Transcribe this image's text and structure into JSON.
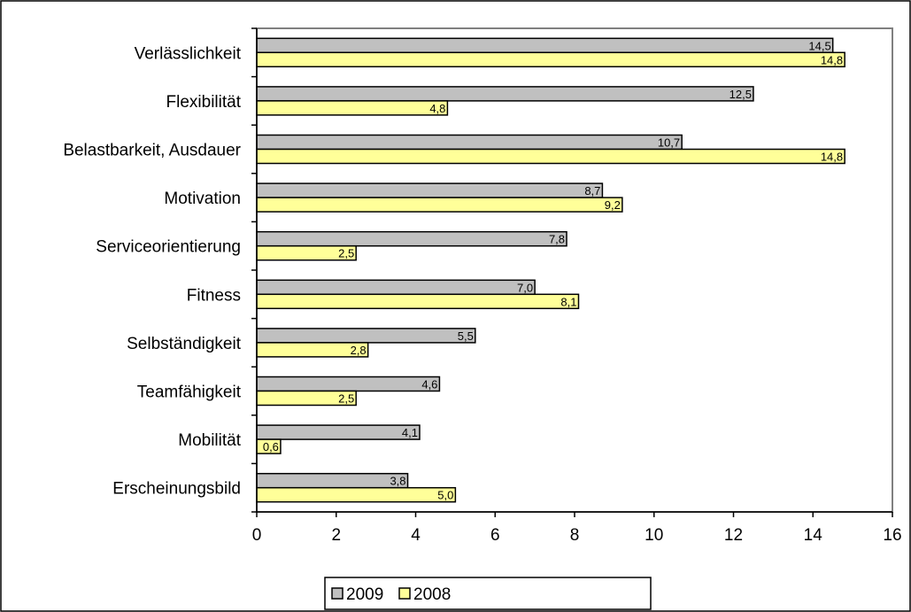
{
  "chart_data": {
    "type": "bar",
    "orientation": "horizontal",
    "categories": [
      "Verlässlichkeit",
      "Flexibilität",
      "Belastbarkeit, Ausdauer",
      "Motivation",
      "Serviceorientierung",
      "Fitness",
      "Selbständigkeit",
      "Teamfähigkeit",
      "Mobilität",
      "Erscheinungsbild"
    ],
    "series": [
      {
        "name": "2009",
        "color": "#c0c0c0",
        "values": [
          14.5,
          12.5,
          10.7,
          8.7,
          7.8,
          7.0,
          5.5,
          4.6,
          4.1,
          3.8
        ],
        "labels": [
          "14,5",
          "12,5",
          "10,7",
          "8,7",
          "7,8",
          "7,0",
          "5,5",
          "4,6",
          "4,1",
          "3,8"
        ]
      },
      {
        "name": "2008",
        "color": "#ffff99",
        "values": [
          14.8,
          4.8,
          14.8,
          9.2,
          2.5,
          8.1,
          2.8,
          2.5,
          0.6,
          5.0
        ],
        "labels": [
          "14,8",
          "4,8",
          "14,8",
          "9,2",
          "2,5",
          "8,1",
          "2,8",
          "2,5",
          "0,6",
          "5,0"
        ]
      }
    ],
    "xlim": [
      0,
      16
    ],
    "xticks": [
      0,
      2,
      4,
      6,
      8,
      10,
      12,
      14,
      16
    ],
    "title": "",
    "xlabel": "",
    "ylabel": "",
    "grid": false,
    "legend_position": "bottom"
  }
}
